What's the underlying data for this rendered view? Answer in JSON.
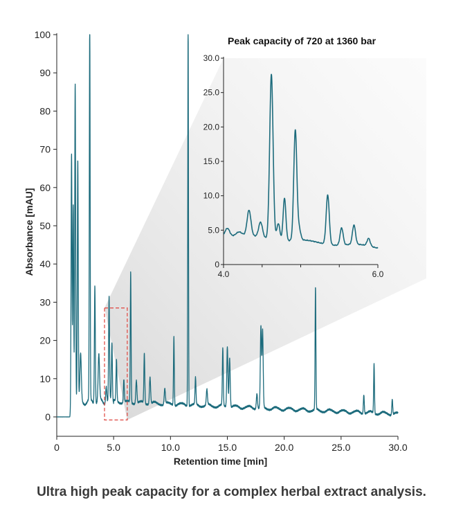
{
  "caption": "Ultra high peak capacity for a complex herbal extract analysis.",
  "colors": {
    "trace": "#1c6b7c",
    "axis": "#222222",
    "highlight_box": "#e0504a",
    "zoom_shade": "#e6e6e6"
  },
  "chart_data": [
    {
      "type": "line",
      "title": "",
      "xlabel": "Retention time [min]",
      "ylabel": "Absorbance [mAU]",
      "xlim": [
        0,
        30
      ],
      "ylim": [
        -5,
        100
      ],
      "xticks": [
        0,
        5,
        10,
        15,
        20,
        25,
        30
      ],
      "xtick_labels": [
        "0",
        "5.0",
        "10.0",
        "15.0",
        "20.0",
        "25.0",
        "30.0"
      ],
      "yticks": [
        0,
        10,
        20,
        30,
        40,
        50,
        60,
        70,
        80,
        90,
        100
      ],
      "ytick_labels": [
        "0",
        "10",
        "20",
        "30",
        "40",
        "50",
        "60",
        "70",
        "80",
        "90",
        "100"
      ],
      "highlight_region": {
        "x": [
          4.2,
          6.2
        ],
        "y": [
          -0.8,
          28.5
        ]
      },
      "peaks": [
        {
          "rt": 1.3,
          "height": 66,
          "width": 0.04
        },
        {
          "rt": 1.45,
          "height": 52,
          "width": 0.04
        },
        {
          "rt": 1.62,
          "height": 84,
          "width": 0.04
        },
        {
          "rt": 1.85,
          "height": 63,
          "width": 0.04
        },
        {
          "rt": 2.1,
          "height": 12,
          "width": 0.06
        },
        {
          "rt": 2.9,
          "height": 100,
          "width": 0.035
        },
        {
          "rt": 3.35,
          "height": 31,
          "width": 0.04
        },
        {
          "rt": 3.7,
          "height": 12,
          "width": 0.06
        },
        {
          "rt": 4.35,
          "height": 4.5,
          "width": 0.05
        },
        {
          "rt": 4.6,
          "height": 27,
          "width": 0.04
        },
        {
          "rt": 4.85,
          "height": 15,
          "width": 0.04
        },
        {
          "rt": 5.25,
          "height": 11,
          "width": 0.04
        },
        {
          "rt": 5.9,
          "height": 6,
          "width": 0.04
        },
        {
          "rt": 6.5,
          "height": 34,
          "width": 0.035
        },
        {
          "rt": 7.0,
          "height": 6,
          "width": 0.05
        },
        {
          "rt": 7.7,
          "height": 13,
          "width": 0.04
        },
        {
          "rt": 8.2,
          "height": 7,
          "width": 0.05
        },
        {
          "rt": 9.5,
          "height": 4,
          "width": 0.05
        },
        {
          "rt": 10.3,
          "height": 18,
          "width": 0.035
        },
        {
          "rt": 11.55,
          "height": 100,
          "width": 0.03
        },
        {
          "rt": 12.2,
          "height": 7,
          "width": 0.04
        },
        {
          "rt": 13.2,
          "height": 4,
          "width": 0.05
        },
        {
          "rt": 14.6,
          "height": 15,
          "width": 0.04
        },
        {
          "rt": 15.0,
          "height": 16,
          "width": 0.05
        },
        {
          "rt": 15.2,
          "height": 13,
          "width": 0.05
        },
        {
          "rt": 17.6,
          "height": 4,
          "width": 0.05
        },
        {
          "rt": 17.95,
          "height": 21,
          "width": 0.05
        },
        {
          "rt": 18.1,
          "height": 20,
          "width": 0.05
        },
        {
          "rt": 22.75,
          "height": 32,
          "width": 0.035
        },
        {
          "rt": 27.0,
          "height": 5,
          "width": 0.04
        },
        {
          "rt": 27.9,
          "height": 13,
          "width": 0.035
        },
        {
          "rt": 29.5,
          "height": 4,
          "width": 0.04
        }
      ]
    },
    {
      "type": "line",
      "title": "Peak capacity of 720 at 1360 bar",
      "xlim": [
        4.0,
        6.0
      ],
      "ylim": [
        0,
        30
      ],
      "xticks": [
        4.0,
        6.0
      ],
      "xtick_labels": [
        "4.0",
        "6.0"
      ],
      "minor_xticks": [
        4.5,
        5.0,
        5.5
      ],
      "yticks": [
        0,
        5,
        10,
        15,
        20,
        25,
        30
      ],
      "ytick_labels": [
        "0",
        "5.0",
        "10.0",
        "15.0",
        "20.0",
        "25.0",
        "30.0"
      ],
      "peaks": [
        {
          "rt": 4.05,
          "height": 1.2,
          "width": 0.03
        },
        {
          "rt": 4.2,
          "height": 0.6,
          "width": 0.04
        },
        {
          "rt": 4.33,
          "height": 3.7,
          "width": 0.025
        },
        {
          "rt": 4.48,
          "height": 2.2,
          "width": 0.025
        },
        {
          "rt": 4.62,
          "height": 24.0,
          "width": 0.022
        },
        {
          "rt": 4.71,
          "height": 2.5,
          "width": 0.02
        },
        {
          "rt": 4.79,
          "height": 6.2,
          "width": 0.018
        },
        {
          "rt": 4.93,
          "height": 16.0,
          "width": 0.02
        },
        {
          "rt": 4.98,
          "height": 1.6,
          "width": 0.02
        },
        {
          "rt": 5.35,
          "height": 7.2,
          "width": 0.02
        },
        {
          "rt": 5.53,
          "height": 2.5,
          "width": 0.02
        },
        {
          "rt": 5.69,
          "height": 2.8,
          "width": 0.02
        },
        {
          "rt": 5.88,
          "height": 1.1,
          "width": 0.02
        }
      ]
    }
  ]
}
